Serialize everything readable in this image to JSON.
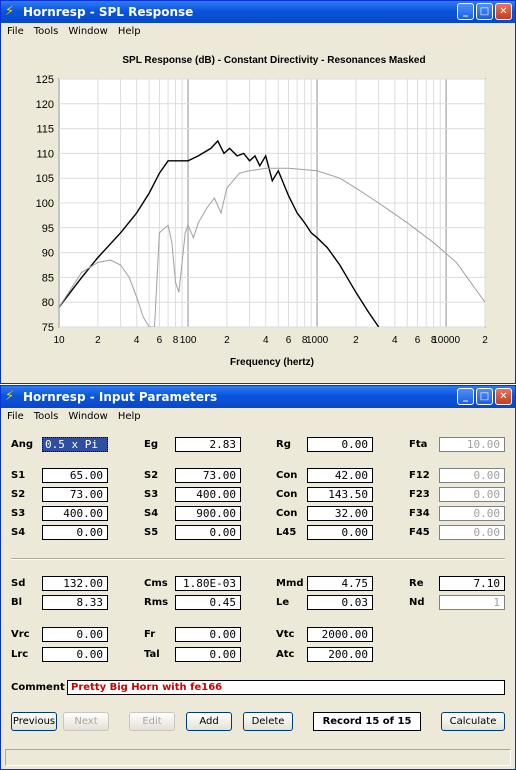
{
  "spl_window": {
    "title": "Hornresp - SPL Response",
    "menu": [
      "File",
      "Tools",
      "Window",
      "Help"
    ]
  },
  "chart_data": {
    "type": "line",
    "title": "SPL Response (dB) - Constant Directivity - Resonances Masked",
    "xlabel": "Frequency (hertz)",
    "ylabel": "",
    "xscale": "log",
    "xlim": [
      10,
      20000
    ],
    "ylim": [
      75,
      125
    ],
    "yticks": [
      75,
      80,
      85,
      90,
      95,
      100,
      105,
      110,
      115,
      120,
      125
    ],
    "xtick_labels": [
      "10",
      "2",
      "4",
      "6",
      "8",
      "100",
      "2",
      "4",
      "6",
      "8",
      "1000",
      "2",
      "4",
      "6",
      "8",
      "10000",
      "2"
    ],
    "grid": true,
    "series": [
      {
        "color": "#000000",
        "x": [
          10,
          15,
          20,
          30,
          40,
          50,
          60,
          70,
          80,
          100,
          120,
          150,
          170,
          190,
          210,
          240,
          270,
          300,
          330,
          360,
          400,
          450,
          500,
          600,
          700,
          800,
          900,
          1000,
          1200,
          1500,
          2000,
          2500,
          3000
        ],
        "y": [
          79,
          85,
          89,
          94,
          98,
          102,
          106,
          108.5,
          108.5,
          108.5,
          109.5,
          111,
          112.5,
          110,
          111,
          109.5,
          110,
          108.5,
          109.5,
          107.5,
          109.5,
          104.5,
          106.5,
          101.5,
          98,
          96,
          94,
          93,
          91,
          87.5,
          82,
          78,
          75
        ]
      },
      {
        "color": "#a0a0a0",
        "x": [
          10,
          15,
          20,
          25,
          30,
          35,
          40,
          45,
          50,
          55,
          60,
          70,
          75,
          80,
          85,
          90,
          95,
          100,
          110,
          120,
          140,
          160,
          180,
          200,
          250,
          300,
          400,
          600,
          1000,
          1500,
          2000,
          3000,
          5000,
          8000,
          12000,
          20000
        ],
        "y": [
          79,
          86,
          88,
          88.5,
          87.5,
          85,
          81,
          77,
          75,
          75,
          94,
          95.5,
          92,
          84,
          82,
          88,
          94,
          95.5,
          93,
          96,
          99,
          101,
          98,
          103,
          106,
          106.5,
          107,
          107,
          106.5,
          105,
          103,
          100,
          96,
          92,
          88,
          80
        ]
      }
    ]
  },
  "input_window": {
    "title": "Hornresp - Input Parameters",
    "menu": [
      "File",
      "Tools",
      "Window",
      "Help"
    ]
  },
  "params": {
    "ang": {
      "label": "Ang",
      "value": "0.5 x Pi"
    },
    "eg": {
      "label": "Eg",
      "value": "2.83"
    },
    "rg": {
      "label": "Rg",
      "value": "0.00"
    },
    "fta": {
      "label": "Fta",
      "value": "10.00"
    },
    "s1": {
      "label": "S1",
      "value": "65.00"
    },
    "s2a": {
      "label": "S2",
      "value": "73.00"
    },
    "con1": {
      "label": "Con",
      "value": "42.00"
    },
    "f12": {
      "label": "F12",
      "value": "0.00"
    },
    "s2": {
      "label": "S2",
      "value": "73.00"
    },
    "s3a": {
      "label": "S3",
      "value": "400.00"
    },
    "con2": {
      "label": "Con",
      "value": "143.50"
    },
    "f23": {
      "label": "F23",
      "value": "0.00"
    },
    "s3": {
      "label": "S3",
      "value": "400.00"
    },
    "s4a": {
      "label": "S4",
      "value": "900.00"
    },
    "con3": {
      "label": "Con",
      "value": "32.00"
    },
    "f34": {
      "label": "F34",
      "value": "0.00"
    },
    "s4": {
      "label": "S4",
      "value": "0.00"
    },
    "s5": {
      "label": "S5",
      "value": "0.00"
    },
    "l45": {
      "label": "L45",
      "value": "0.00"
    },
    "f45": {
      "label": "F45",
      "value": "0.00"
    },
    "sd": {
      "label": "Sd",
      "value": "132.00"
    },
    "cms": {
      "label": "Cms",
      "value": "1.80E-03"
    },
    "mmd": {
      "label": "Mmd",
      "value": "4.75"
    },
    "re": {
      "label": "Re",
      "value": "7.10"
    },
    "bl": {
      "label": "Bl",
      "value": "8.33"
    },
    "rms": {
      "label": "Rms",
      "value": "0.45"
    },
    "le": {
      "label": "Le",
      "value": "0.03"
    },
    "nd": {
      "label": "Nd",
      "value": "1"
    },
    "vrc": {
      "label": "Vrc",
      "value": "0.00"
    },
    "fr": {
      "label": "Fr",
      "value": "0.00"
    },
    "vtc": {
      "label": "Vtc",
      "value": "2000.00"
    },
    "lrc": {
      "label": "Lrc",
      "value": "0.00"
    },
    "tal": {
      "label": "Tal",
      "value": "0.00"
    },
    "atc": {
      "label": "Atc",
      "value": "200.00"
    }
  },
  "comment": {
    "label": "Comment",
    "value": "Pretty Big Horn with fe166"
  },
  "buttons": {
    "previous": "Previous",
    "next": "Next",
    "edit": "Edit",
    "add": "Add",
    "delete": "Delete",
    "record": "Record 15 of 15",
    "calculate": "Calculate"
  }
}
